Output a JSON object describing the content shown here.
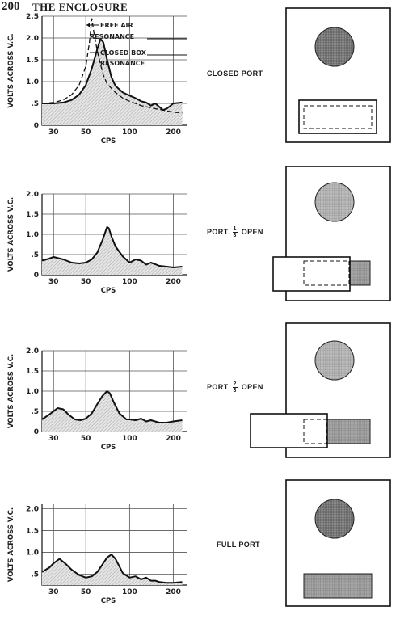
{
  "page_number": "200",
  "running_head": "THE ENCLOSURE",
  "chart_data": [
    {
      "type": "line",
      "xlabel": "CPS",
      "ylabel": "VOLTS ACROSS V.C.",
      "x_scale": "log",
      "x_ticks": [
        "30",
        "50",
        "100",
        "200"
      ],
      "y_ticks": [
        "0",
        ".5",
        "1.0",
        "1.5",
        "2.0",
        "2.5"
      ],
      "ylim": [
        0,
        2.5
      ],
      "xlim": [
        25,
        250
      ],
      "series": [
        {
          "x": [
            25,
            30,
            35,
            40,
            45,
            50,
            55,
            60,
            63,
            66,
            70,
            75,
            80,
            90,
            100,
            110,
            120,
            130,
            140,
            150,
            160,
            170,
            180,
            200,
            230
          ],
          "values": [
            0.5,
            0.5,
            0.52,
            0.58,
            0.7,
            0.92,
            1.3,
            1.75,
            1.98,
            1.9,
            1.5,
            1.1,
            0.9,
            0.75,
            0.68,
            0.62,
            0.55,
            0.52,
            0.45,
            0.5,
            0.42,
            0.35,
            0.38,
            0.5,
            0.52
          ]
        },
        {
          "x": [
            25,
            30,
            35,
            40,
            45,
            50,
            53,
            55,
            57,
            60,
            63,
            66,
            70,
            80,
            90,
            100,
            120,
            150,
            200,
            230
          ],
          "values": [
            0.5,
            0.52,
            0.58,
            0.7,
            0.92,
            1.35,
            1.9,
            2.45,
            2.1,
            1.7,
            1.4,
            1.15,
            0.95,
            0.75,
            0.62,
            0.55,
            0.45,
            0.38,
            0.3,
            0.28
          ]
        }
      ],
      "annotations": [
        "FREE AIR RESONANCE",
        "CLOSED BOX RESONANCE"
      ],
      "condition": "CLOSED PORT"
    },
    {
      "type": "line",
      "xlabel": "CPS",
      "ylabel": "VOLTS ACROSS V.C.",
      "x_scale": "log",
      "x_ticks": [
        "30",
        "50",
        "100",
        "200"
      ],
      "y_ticks": [
        "0",
        ".5",
        "1.0",
        "1.5",
        "2.0"
      ],
      "ylim": [
        0,
        2.0
      ],
      "xlim": [
        25,
        250
      ],
      "series": [
        {
          "x": [
            25,
            28,
            30,
            35,
            40,
            45,
            50,
            55,
            60,
            65,
            70,
            72,
            75,
            80,
            90,
            100,
            110,
            120,
            130,
            140,
            150,
            160,
            180,
            200,
            230
          ],
          "values": [
            0.35,
            0.4,
            0.44,
            0.38,
            0.3,
            0.28,
            0.3,
            0.38,
            0.55,
            0.85,
            1.18,
            1.15,
            0.95,
            0.7,
            0.45,
            0.3,
            0.38,
            0.35,
            0.25,
            0.3,
            0.26,
            0.22,
            0.2,
            0.18,
            0.2
          ]
        }
      ],
      "condition_parts": {
        "before": "PORT",
        "numerator": "1",
        "denominator": "3",
        "after": "OPEN"
      }
    },
    {
      "type": "line",
      "xlabel": "CPS",
      "ylabel": "VOLTS ACROSS V.C.",
      "x_scale": "log",
      "x_ticks": [
        "30",
        "50",
        "100",
        "200"
      ],
      "y_ticks": [
        "0",
        ".5",
        "1.0",
        "1.5",
        "2.0"
      ],
      "ylim": [
        0,
        2.0
      ],
      "xlim": [
        25,
        250
      ],
      "series": [
        {
          "x": [
            25,
            28,
            32,
            35,
            38,
            42,
            46,
            50,
            55,
            60,
            65,
            70,
            73,
            78,
            85,
            95,
            100,
            110,
            120,
            130,
            140,
            160,
            180,
            200,
            230
          ],
          "values": [
            0.3,
            0.42,
            0.58,
            0.55,
            0.42,
            0.3,
            0.28,
            0.32,
            0.45,
            0.68,
            0.88,
            1.0,
            0.95,
            0.72,
            0.45,
            0.3,
            0.3,
            0.28,
            0.32,
            0.25,
            0.28,
            0.22,
            0.22,
            0.25,
            0.28
          ]
        }
      ],
      "condition_parts": {
        "before": "PORT",
        "numerator": "2",
        "denominator": "3",
        "after": "OPEN"
      }
    },
    {
      "type": "line",
      "xlabel": "CPS",
      "ylabel": "VOLTS ACROSS V.C.",
      "x_scale": "log",
      "x_ticks": [
        "30",
        "50",
        "100",
        "200"
      ],
      "y_ticks": [
        ".5",
        "1.0",
        "1.5",
        "2.0"
      ],
      "ylim": [
        0.25,
        2.1
      ],
      "xlim": [
        25,
        250
      ],
      "series": [
        {
          "x": [
            25,
            28,
            30,
            33,
            36,
            40,
            45,
            50,
            55,
            60,
            65,
            70,
            75,
            80,
            85,
            90,
            100,
            110,
            120,
            130,
            140,
            150,
            160,
            180,
            200,
            230
          ],
          "values": [
            0.55,
            0.65,
            0.75,
            0.85,
            0.75,
            0.6,
            0.48,
            0.42,
            0.45,
            0.55,
            0.72,
            0.88,
            0.95,
            0.85,
            0.68,
            0.52,
            0.42,
            0.45,
            0.38,
            0.42,
            0.35,
            0.35,
            0.32,
            0.3,
            0.3,
            0.32
          ]
        }
      ],
      "condition": "FULL PORT"
    }
  ]
}
